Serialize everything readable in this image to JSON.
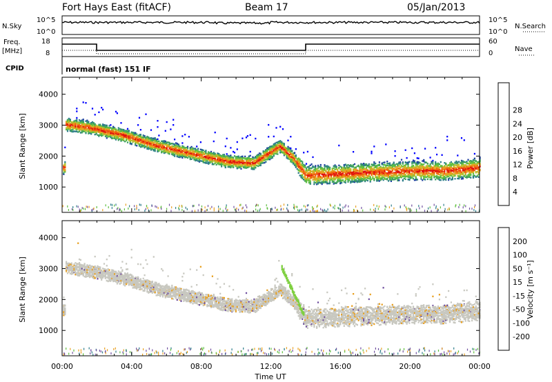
{
  "header": {
    "station": "Fort Hays East (fitACF)",
    "beam": "Beam 17",
    "date": "05/Jan/2013"
  },
  "strip": {
    "nsky_label": "N.Sky",
    "nsearch_label": "N.Search",
    "nsky_ticks": [
      "10^5",
      "10^0"
    ],
    "nsearch_ticks": [
      "10^5",
      "10^0"
    ],
    "freq_label": "Freq.",
    "freq_unit": "[MHz]",
    "freq_ticks": [
      "18",
      "8"
    ],
    "nave_label": "Nave",
    "nave_ticks": [
      "60",
      "0"
    ],
    "cpid_label": "CPID",
    "cpid_text": "normal (fast) 151 IF"
  },
  "chart_data": [
    {
      "type": "heatmap",
      "name": "power",
      "ylabel": "Slant Range [km]",
      "xlabel": "Time UT",
      "x_ticks": [
        "00:00",
        "04:00",
        "08:00",
        "12:00",
        "16:00",
        "20:00",
        "00:00"
      ],
      "y_ticks": [
        "1000",
        "2000",
        "3000",
        "4000"
      ],
      "xlim_hours": [
        0,
        24
      ],
      "ylim_km": [
        180,
        4550
      ],
      "colorbar": {
        "label": "Power [dB]",
        "ticks": [
          "4",
          "8",
          "12",
          "16",
          "20",
          "24",
          "28"
        ],
        "colors": [
          "#0000ff",
          "#1f3fa0",
          "#2e7d8a",
          "#3fa060",
          "#5fbf40",
          "#b8c030",
          "#e8a020",
          "#f06010",
          "#e01010"
        ]
      },
      "echo_band": [
        {
          "t": 0.2,
          "r": 3000
        },
        {
          "t": 1.5,
          "r": 2900
        },
        {
          "t": 3.5,
          "r": 2650
        },
        {
          "t": 5.5,
          "r": 2300
        },
        {
          "t": 7.5,
          "r": 2050
        },
        {
          "t": 9.5,
          "r": 1800
        },
        {
          "t": 11.0,
          "r": 1750
        },
        {
          "t": 12.5,
          "r": 2300
        },
        {
          "t": 13.3,
          "r": 1900
        },
        {
          "t": 14.0,
          "r": 1350
        },
        {
          "t": 16.0,
          "r": 1400
        },
        {
          "t": 18.0,
          "r": 1450
        },
        {
          "t": 20.0,
          "r": 1500
        },
        {
          "t": 22.0,
          "r": 1500
        },
        {
          "t": 24.0,
          "r": 1600
        }
      ]
    },
    {
      "type": "heatmap",
      "name": "velocity",
      "ylabel": "Slant Range [km]",
      "xlabel": "Time UT",
      "x_ticks": [
        "00:00",
        "04:00",
        "08:00",
        "12:00",
        "16:00",
        "20:00",
        "00:00"
      ],
      "y_ticks": [
        "1000",
        "2000",
        "3000",
        "4000"
      ],
      "xlim_hours": [
        0,
        24
      ],
      "ylim_km": [
        180,
        4550
      ],
      "colorbar": {
        "label": "Velocity [m s⁻¹]",
        "ticks": [
          "200",
          "100",
          "50",
          "15",
          "-15",
          "-50",
          "-100",
          "-200"
        ],
        "colors": [
          "#1030c0",
          "#2050b0",
          "#2e8060",
          "#3fa040",
          "#7fd040",
          "#c8c8c0",
          "#e8a020",
          "#f07010",
          "#e01010"
        ]
      }
    }
  ]
}
